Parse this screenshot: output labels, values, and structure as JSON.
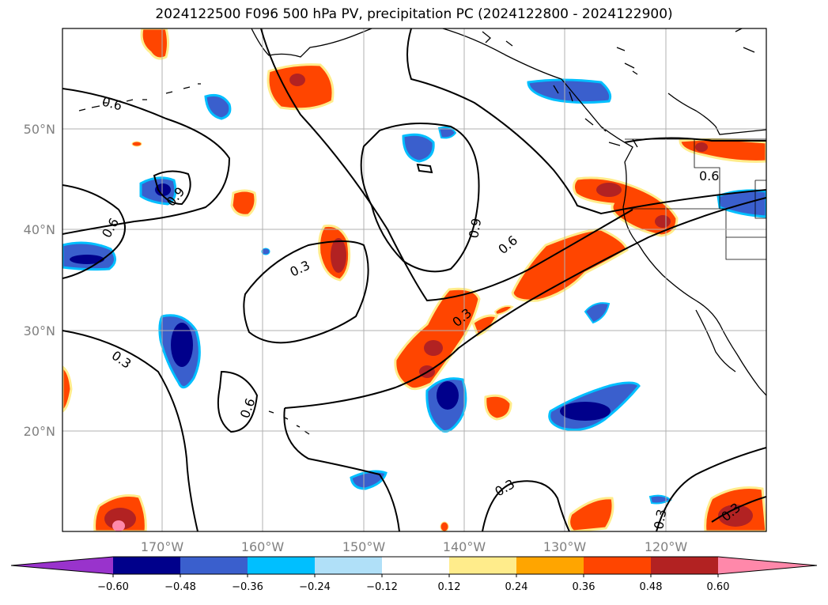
{
  "title": "2024122500 F096 500 hPa PV, precipitation PC (2024122800 - 2024122900)",
  "map": {
    "lon_ticks": [
      "170°W",
      "160°W",
      "150°W",
      "140°W",
      "130°W",
      "120°W"
    ],
    "lat_ticks": [
      "50°N",
      "40°N",
      "30°N",
      "20°N"
    ],
    "grid": true,
    "contour_labels": [
      "0.6",
      "0.9",
      "0.6",
      "0.3",
      "0.3",
      "0.9",
      "0.6",
      "0.3",
      "0.6",
      "0.3",
      "0.3",
      "0.3",
      "0.6"
    ]
  },
  "colorbar": {
    "tick_labels": [
      "−0.60",
      "−0.48",
      "−0.36",
      "−0.24",
      "−0.12",
      "0.12",
      "0.24",
      "0.36",
      "0.48",
      "0.60"
    ],
    "colors": [
      "#9933cc",
      "#00008b",
      "#3a5fcd",
      "#00bfff",
      "#b0e0f8",
      "#ffffff",
      "#ffec8b",
      "#ffa500",
      "#ff4500",
      "#b22222",
      "#ff88aa"
    ]
  }
}
